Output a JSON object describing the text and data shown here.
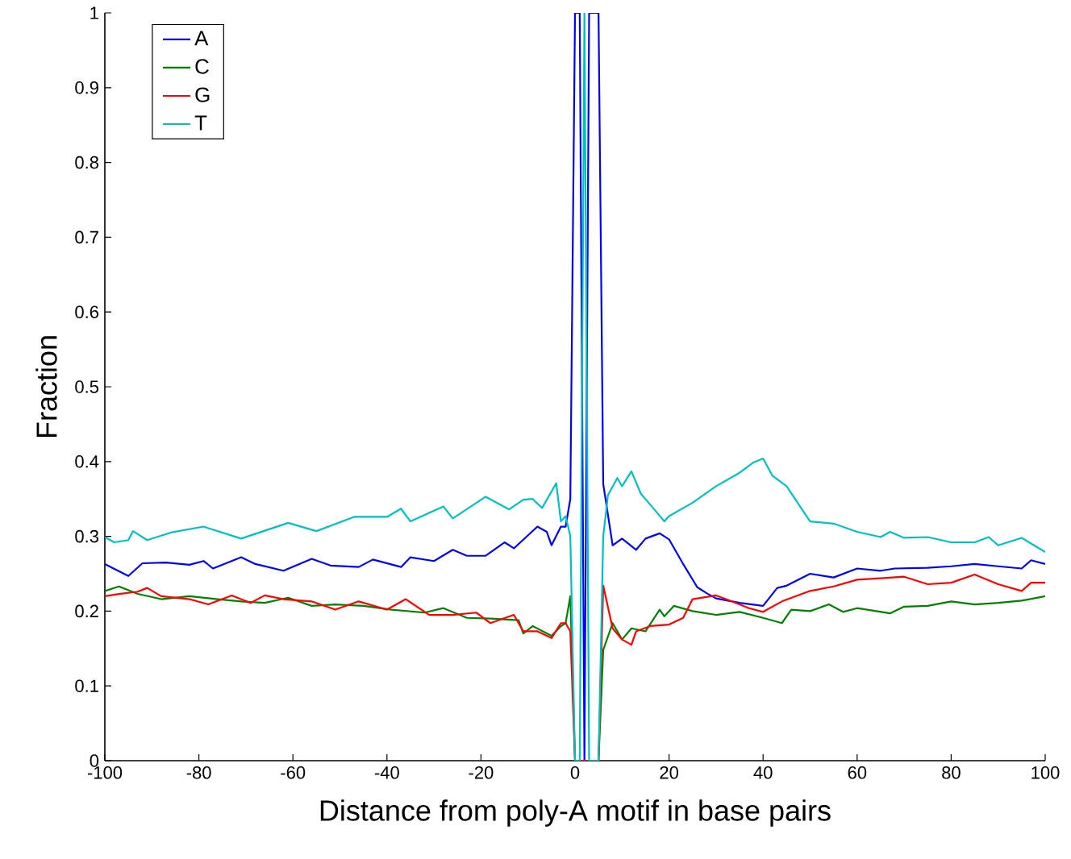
{
  "chart_data": {
    "type": "line",
    "xlabel": "Distance from poly-A motif in base pairs",
    "ylabel": "Fraction",
    "xlim": [
      -100,
      100
    ],
    "ylim": [
      0,
      1
    ],
    "xticks": [
      -100,
      -80,
      -60,
      -40,
      -20,
      0,
      20,
      40,
      60,
      80,
      100
    ],
    "yticks": [
      0,
      0.1,
      0.2,
      0.3,
      0.4,
      0.5,
      0.6,
      0.7,
      0.8,
      0.9,
      1
    ],
    "legend": "top left",
    "series": [
      {
        "name": "A",
        "color": "#0000ff",
        "x": [
          -100,
          -95,
          -92,
          -87,
          -82,
          -79,
          -77,
          -71,
          -68,
          -62,
          -56,
          -52,
          -46,
          -43,
          -37,
          -35,
          -30,
          -26,
          -23,
          -19,
          -15,
          -13,
          -8,
          -6,
          -5,
          -3,
          -2,
          -1,
          0,
          1,
          2,
          3,
          4,
          5,
          6,
          8,
          10,
          13,
          15,
          18,
          20,
          23,
          26,
          28,
          30,
          35,
          40,
          43,
          45,
          50,
          55,
          60,
          65,
          68,
          75,
          80,
          85,
          90,
          95,
          97,
          100
        ],
        "values": [
          0.263,
          0.247,
          0.264,
          0.265,
          0.262,
          0.267,
          0.257,
          0.272,
          0.263,
          0.254,
          0.27,
          0.261,
          0.259,
          0.269,
          0.259,
          0.272,
          0.267,
          0.282,
          0.274,
          0.274,
          0.292,
          0.284,
          0.313,
          0.306,
          0.288,
          0.313,
          0.313,
          0.35,
          1,
          1,
          0,
          1,
          1,
          1,
          0.37,
          0.288,
          0.297,
          0.282,
          0.297,
          0.304,
          0.296,
          0.263,
          0.232,
          0.224,
          0.217,
          0.211,
          0.207,
          0.231,
          0.234,
          0.25,
          0.245,
          0.257,
          0.254,
          0.257,
          0.258,
          0.26,
          0.263,
          0.26,
          0.257,
          0.268,
          0.263
        ]
      },
      {
        "name": "C",
        "color": "#008000",
        "x": [
          -100,
          -97,
          -93,
          -88,
          -82,
          -76,
          -71,
          -66,
          -61,
          -56,
          -51,
          -45,
          -39,
          -32,
          -28,
          -23,
          -18,
          -12,
          -11,
          -9,
          -5,
          -3,
          -2,
          -1,
          0,
          1,
          2,
          3,
          4,
          5,
          6,
          8,
          10,
          12,
          15,
          18,
          19,
          21,
          25,
          30,
          35,
          40,
          44,
          46,
          50,
          54,
          57,
          60,
          67,
          70,
          75,
          80,
          85,
          90,
          95,
          100
        ],
        "values": [
          0.227,
          0.233,
          0.223,
          0.216,
          0.22,
          0.216,
          0.213,
          0.211,
          0.218,
          0.207,
          0.209,
          0.207,
          0.202,
          0.198,
          0.204,
          0.191,
          0.19,
          0.188,
          0.17,
          0.18,
          0.167,
          0.18,
          0.184,
          0.22,
          0,
          0,
          0,
          0,
          0,
          0,
          0.148,
          0.184,
          0.162,
          0.177,
          0.173,
          0.202,
          0.193,
          0.207,
          0.2,
          0.195,
          0.199,
          0.191,
          0.184,
          0.202,
          0.2,
          0.209,
          0.199,
          0.204,
          0.197,
          0.206,
          0.207,
          0.213,
          0.209,
          0.211,
          0.214,
          0.22
        ]
      },
      {
        "name": "G",
        "color": "#ff0000",
        "x": [
          -100,
          -97,
          -93,
          -91,
          -88,
          -82,
          -78,
          -73,
          -69,
          -66,
          -62,
          -56,
          -51,
          -46,
          -40,
          -36,
          -31,
          -26,
          -21,
          -18,
          -13,
          -11,
          -8,
          -5,
          -3,
          -2,
          -1,
          0,
          1,
          2,
          3,
          4,
          5,
          6,
          8,
          10,
          12,
          13,
          16,
          20,
          23,
          25,
          30,
          33,
          37,
          40,
          44,
          47,
          50,
          55,
          60,
          65,
          70,
          75,
          80,
          85,
          90,
          95,
          97,
          100
        ],
        "values": [
          0.22,
          0.223,
          0.226,
          0.231,
          0.22,
          0.216,
          0.209,
          0.221,
          0.211,
          0.221,
          0.216,
          0.213,
          0.202,
          0.213,
          0.202,
          0.216,
          0.195,
          0.195,
          0.198,
          0.184,
          0.195,
          0.173,
          0.173,
          0.164,
          0.184,
          0.184,
          0.173,
          0,
          0,
          0,
          0,
          0,
          0,
          0.234,
          0.177,
          0.162,
          0.155,
          0.173,
          0.18,
          0.182,
          0.191,
          0.216,
          0.221,
          0.214,
          0.204,
          0.199,
          0.213,
          0.22,
          0.227,
          0.233,
          0.242,
          0.244,
          0.246,
          0.236,
          0.238,
          0.249,
          0.236,
          0.227,
          0.238,
          0.238
        ]
      },
      {
        "name": "T",
        "color": "#00bfbf",
        "x": [
          -100,
          -98,
          -95,
          -94,
          -91,
          -86,
          -79,
          -71,
          -61,
          -55,
          -47,
          -40,
          -37,
          -35,
          -28,
          -26,
          -19,
          -14,
          -11,
          -9,
          -7,
          -4,
          -3,
          -2,
          -1,
          0,
          1,
          2,
          3,
          4,
          5,
          6,
          7,
          9,
          10,
          12,
          14,
          17,
          19,
          20,
          25,
          30,
          35,
          38,
          40,
          42,
          45,
          50,
          55,
          60,
          65,
          67,
          70,
          75,
          80,
          85,
          88,
          90,
          95,
          100
        ],
        "values": [
          0.299,
          0.292,
          0.295,
          0.307,
          0.295,
          0.305,
          0.313,
          0.297,
          0.318,
          0.307,
          0.326,
          0.326,
          0.337,
          0.32,
          0.34,
          0.324,
          0.353,
          0.336,
          0.349,
          0.35,
          0.338,
          0.371,
          0.32,
          0.327,
          0.3,
          0,
          0,
          1,
          0,
          0,
          0,
          0.3,
          0.355,
          0.378,
          0.367,
          0.387,
          0.357,
          0.335,
          0.32,
          0.327,
          0.345,
          0.367,
          0.385,
          0.399,
          0.404,
          0.381,
          0.367,
          0.32,
          0.317,
          0.306,
          0.299,
          0.306,
          0.298,
          0.299,
          0.292,
          0.292,
          0.299,
          0.288,
          0.298,
          0.279
        ]
      }
    ]
  }
}
